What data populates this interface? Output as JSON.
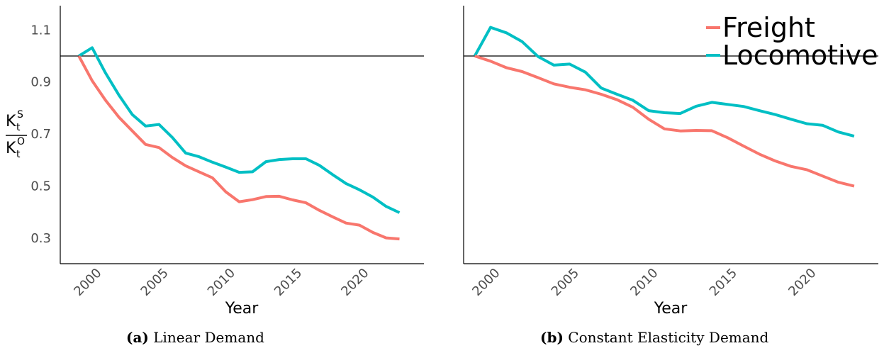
{
  "colors": {
    "freight": "#F8766D",
    "locomotive": "#00BFC4",
    "axis": "#000000",
    "tick_text": "#4d4d4d"
  },
  "y_axis_label": {
    "main": "K",
    "sub": "t",
    "num_sup": "S",
    "den_sup": "O"
  },
  "y_tick_labels": [
    "0.3",
    "0.5",
    "0.7",
    "0.9",
    "1.1"
  ],
  "x_tick_labels": [
    "2000",
    "2005",
    "2010",
    "2015",
    "2020"
  ],
  "x_axis_title": "Year",
  "legend": {
    "freight": "Freight",
    "locomotive": "Locomotive"
  },
  "captions": [
    {
      "tag": "(a)",
      "text": "Linear Demand"
    },
    {
      "tag": "(b)",
      "text": "Constant Elasticity Demand"
    }
  ],
  "chart_data": [
    {
      "type": "line",
      "xlim": [
        1998,
        2024
      ],
      "ylim": [
        0.2,
        1.2
      ],
      "yticks": [
        0.3,
        0.5,
        0.7,
        0.9,
        1.1
      ],
      "xticks": [
        2000,
        2005,
        2010,
        2015,
        2020
      ],
      "reference_line": 1.0,
      "x": [
        1999,
        2000,
        2001,
        2002,
        2003,
        2004,
        2005,
        2006,
        2007,
        2008,
        2009,
        2010,
        2011,
        2012,
        2013,
        2014,
        2015,
        2016,
        2017,
        2018,
        2019,
        2020,
        2021,
        2022,
        2023
      ],
      "series": [
        {
          "name": "Freight",
          "color": "#F8766D",
          "values": [
            1.0,
            0.905,
            0.83,
            0.765,
            0.712,
            0.66,
            0.648,
            0.61,
            0.578,
            0.555,
            0.532,
            0.478,
            0.44,
            0.448,
            0.46,
            0.461,
            0.447,
            0.436,
            0.407,
            0.382,
            0.358,
            0.35,
            0.322,
            0.301,
            0.297
          ]
        },
        {
          "name": "Locomotive",
          "color": "#00BFC4",
          "values": [
            1.0,
            1.032,
            0.935,
            0.85,
            0.775,
            0.731,
            0.737,
            0.687,
            0.627,
            0.613,
            0.592,
            0.573,
            0.553,
            0.555,
            0.594,
            0.602,
            0.605,
            0.605,
            0.58,
            0.544,
            0.51,
            0.486,
            0.458,
            0.422,
            0.398
          ]
        }
      ]
    },
    {
      "type": "line",
      "xlim": [
        1998,
        2024
      ],
      "ylim": [
        0.2,
        1.2
      ],
      "xticks": [
        2000,
        2005,
        2010,
        2015,
        2020
      ],
      "reference_line": 1.0,
      "legend_position": "top-right",
      "x": [
        1999,
        2000,
        2001,
        2002,
        2003,
        2004,
        2005,
        2006,
        2007,
        2008,
        2009,
        2010,
        2011,
        2012,
        2013,
        2014,
        2015,
        2016,
        2017,
        2018,
        2019,
        2020,
        2021,
        2022,
        2023
      ],
      "series": [
        {
          "name": "Freight",
          "color": "#F8766D",
          "values": [
            1.0,
            0.98,
            0.955,
            0.94,
            0.917,
            0.893,
            0.88,
            0.87,
            0.853,
            0.832,
            0.803,
            0.757,
            0.72,
            0.712,
            0.714,
            0.713,
            0.686,
            0.654,
            0.623,
            0.597,
            0.576,
            0.563,
            0.539,
            0.515,
            0.5
          ]
        },
        {
          "name": "Locomotive",
          "color": "#00BFC4",
          "values": [
            1.0,
            1.11,
            1.089,
            1.055,
            0.998,
            0.965,
            0.969,
            0.938,
            0.877,
            0.853,
            0.83,
            0.79,
            0.782,
            0.779,
            0.807,
            0.822,
            0.814,
            0.806,
            0.79,
            0.775,
            0.757,
            0.74,
            0.734,
            0.708,
            0.692
          ]
        }
      ]
    }
  ]
}
